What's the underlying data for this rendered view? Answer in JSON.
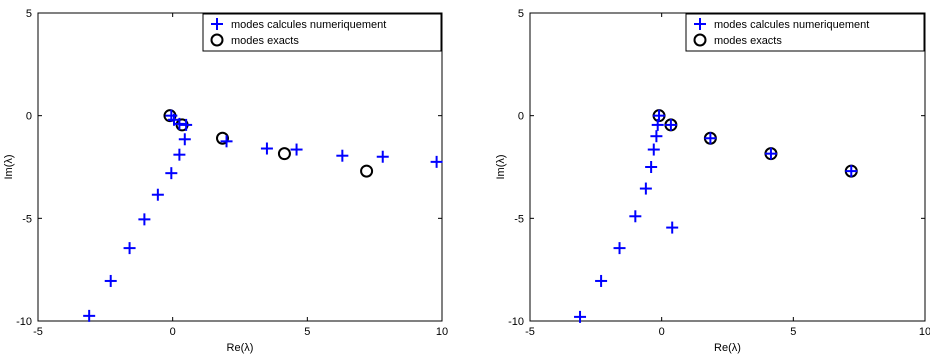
{
  "chart_data": [
    {
      "type": "scatter",
      "xlabel": "Re(λ)",
      "ylabel": "Im(λ)",
      "xlim": [
        -5,
        10
      ],
      "ylim": [
        -10,
        5
      ],
      "xticks": [
        "-5",
        "0",
        "5",
        "10"
      ],
      "yticks": [
        "5",
        "0",
        "-5",
        "-10"
      ],
      "grid": false,
      "legend_position": "top-right",
      "series": [
        {
          "name": "modes calcules numeriquement",
          "marker": "plus",
          "color": "#0000ff",
          "points": [
            [
              -3.1,
              -9.75
            ],
            [
              -2.3,
              -8.05
            ],
            [
              -1.6,
              -6.45
            ],
            [
              -1.05,
              -5.05
            ],
            [
              -0.55,
              -3.85
            ],
            [
              -0.05,
              -2.8
            ],
            [
              0.25,
              -1.9
            ],
            [
              0.45,
              -1.15
            ],
            [
              0.5,
              -0.45
            ],
            [
              0.25,
              -0.4
            ],
            [
              0.05,
              -0.2
            ],
            [
              -0.05,
              0.0
            ],
            [
              2.0,
              -1.25
            ],
            [
              3.5,
              -1.6
            ],
            [
              4.6,
              -1.65
            ],
            [
              6.3,
              -1.95
            ],
            [
              7.8,
              -2.0
            ],
            [
              9.8,
              -2.25
            ]
          ]
        },
        {
          "name": "modes exacts",
          "marker": "circle",
          "color": "#000000",
          "points": [
            [
              -0.1,
              0.0
            ],
            [
              0.35,
              -0.45
            ],
            [
              1.85,
              -1.1
            ],
            [
              4.15,
              -1.85
            ],
            [
              7.2,
              -2.7
            ]
          ]
        }
      ]
    },
    {
      "type": "scatter",
      "xlabel": "Re(λ)",
      "ylabel": "Im(λ)",
      "xlim": [
        -5,
        10
      ],
      "ylim": [
        -10,
        5
      ],
      "xticks": [
        "-5",
        "0",
        "5",
        "10"
      ],
      "yticks": [
        "5",
        "0",
        "-5",
        "-10"
      ],
      "grid": false,
      "legend_position": "top-right",
      "series": [
        {
          "name": "modes calcules numeriquement",
          "marker": "plus",
          "color": "#0000ff",
          "points": [
            [
              -3.1,
              -9.8
            ],
            [
              -2.3,
              -8.05
            ],
            [
              -1.6,
              -6.45
            ],
            [
              -1.0,
              -4.9
            ],
            [
              -0.6,
              -3.55
            ],
            [
              -0.4,
              -2.5
            ],
            [
              -0.3,
              -1.65
            ],
            [
              -0.2,
              -1.0
            ],
            [
              -0.15,
              -0.45
            ],
            [
              -0.1,
              0.0
            ],
            [
              0.4,
              -5.45
            ],
            [
              0.35,
              -0.45
            ],
            [
              1.85,
              -1.1
            ],
            [
              4.15,
              -1.85
            ],
            [
              7.2,
              -2.7
            ]
          ]
        },
        {
          "name": "modes exacts",
          "marker": "circle",
          "color": "#000000",
          "points": [
            [
              -0.1,
              0.0
            ],
            [
              0.35,
              -0.45
            ],
            [
              1.85,
              -1.1
            ],
            [
              4.15,
              -1.85
            ],
            [
              7.2,
              -2.7
            ]
          ]
        }
      ]
    }
  ]
}
